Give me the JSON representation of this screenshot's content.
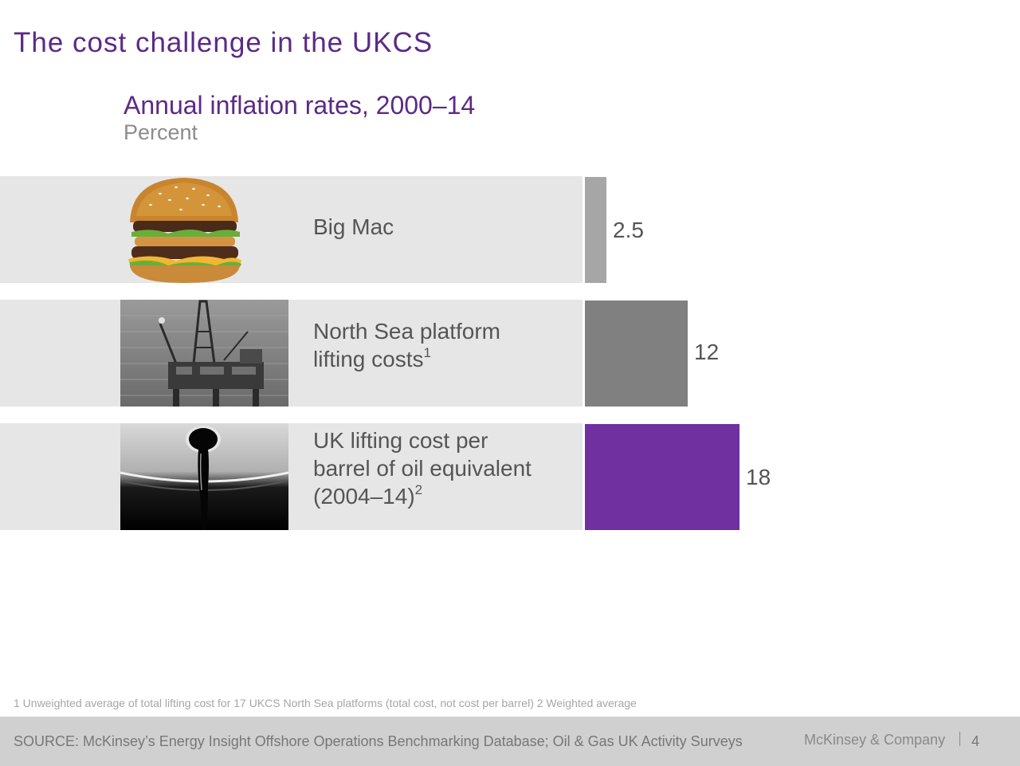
{
  "slide": {
    "title": "The cost challenge in the UKCS"
  },
  "chart_data": {
    "type": "bar",
    "orientation": "horizontal",
    "title": "Annual inflation rates, 2000–14",
    "unit": "Percent",
    "categories": [
      "Big Mac",
      "North Sea platform lifting costs",
      "UK lifting cost per barrel of oil equivalent (2004–14)"
    ],
    "values": [
      2.5,
      12,
      18
    ],
    "value_labels": [
      "2.5",
      "12",
      "18"
    ],
    "category_footnotes": [
      "",
      "1",
      "2"
    ],
    "bar_colors": [
      "#a6a6a6",
      "#808080",
      "#7030a0"
    ],
    "xlim": [
      0,
      18
    ],
    "grid": false,
    "legend": "none",
    "row_images": [
      "burger-image",
      "platform-image",
      "oil-drop-image"
    ]
  },
  "labels": {
    "row0": {
      "lines": [
        "Big Mac"
      ],
      "sup": ""
    },
    "row1": {
      "lines": [
        "North Sea platform",
        "lifting costs"
      ],
      "sup": "1"
    },
    "row2": {
      "lines": [
        "UK lifting cost per",
        "barrel of oil equivalent",
        "(2004–14)"
      ],
      "sup": "2"
    }
  },
  "footnote": "1 Unweighted average of total lifting cost for 17 UKCS North Sea platforms (total cost, not cost per barrel) 2 Weighted average",
  "footer": {
    "source": "SOURCE: McKinsey’s Energy Insight Offshore Operations Benchmarking Database; Oil & Gas UK Activity Surveys",
    "brand": "McKinsey & Company",
    "page_number": "4"
  }
}
